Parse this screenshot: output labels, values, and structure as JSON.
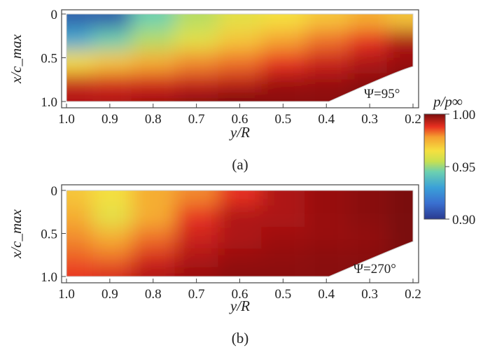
{
  "chart_data": [
    {
      "type": "heatmap",
      "panel_label": "(a)",
      "annotation": "Ψ=95°",
      "xlabel": "y/R",
      "ylabel": "x/c_max",
      "xlim": [
        1.0,
        0.2
      ],
      "ylim": [
        0,
        1.0
      ],
      "y_reversed": true,
      "xticks": [
        "1.0",
        "0.9",
        "0.8",
        "0.7",
        "0.6",
        "0.5",
        "0.4",
        "0.3",
        "0.2"
      ],
      "yticks": [
        "0",
        "0.5",
        "1.0"
      ],
      "field_description": "low pressure near leading edge at outboard y/R≈0.95, rising to high pressure near trailing edge",
      "sample_grid": {
        "y_over_R": [
          0.98,
          0.9,
          0.8,
          0.7,
          0.6,
          0.5,
          0.4,
          0.3,
          0.22
        ],
        "x_over_cmax": [
          0.05,
          0.3,
          0.55,
          0.8,
          0.97
        ],
        "p_over_pinf": [
          [
            0.905,
            0.905,
            0.925,
            0.935,
            0.945,
            0.95,
            0.955,
            0.96,
            0.955
          ],
          [
            0.915,
            0.925,
            0.935,
            0.945,
            0.955,
            0.962,
            0.968,
            0.975,
            0.985
          ],
          [
            0.95,
            0.955,
            0.96,
            0.965,
            0.968,
            0.975,
            0.98,
            0.985,
            0.99
          ],
          [
            0.98,
            0.978,
            0.978,
            0.98,
            0.982,
            0.988,
            0.99,
            0.995,
            0.998
          ],
          [
            0.985,
            0.985,
            0.988,
            0.995,
            1.0,
            0.995,
            0.995,
            0.998,
            1.0
          ]
        ]
      }
    },
    {
      "type": "heatmap",
      "panel_label": "(b)",
      "annotation": "Ψ=270°",
      "xlabel": "y/R",
      "ylabel": "x/c_max",
      "xlim": [
        1.0,
        0.2
      ],
      "ylim": [
        0,
        1.0
      ],
      "y_reversed": true,
      "xticks": [
        "1.0",
        "0.9",
        "0.8",
        "0.7",
        "0.6",
        "0.5",
        "0.4",
        "0.3",
        "0.2"
      ],
      "yticks": [
        "0",
        "0.5",
        "1.0"
      ],
      "field_description": "moderate pressure near outboard leading edge, high pressure over most of the blade inboard",
      "sample_grid": {
        "y_over_R": [
          0.98,
          0.9,
          0.8,
          0.7,
          0.6,
          0.5,
          0.4,
          0.3,
          0.22
        ],
        "x_over_cmax": [
          0.05,
          0.3,
          0.55,
          0.8,
          0.97
        ],
        "p_over_pinf": [
          [
            0.955,
            0.95,
            0.96,
            0.965,
            0.975,
            0.985,
            0.99,
            0.995,
            1.0
          ],
          [
            0.96,
            0.945,
            0.96,
            0.975,
            0.985,
            0.985,
            0.99,
            0.995,
            1.0
          ],
          [
            0.965,
            0.96,
            0.968,
            0.98,
            0.985,
            0.988,
            0.99,
            0.992,
            1.0
          ],
          [
            0.97,
            0.968,
            0.978,
            0.985,
            0.99,
            0.992,
            0.995,
            0.995,
            1.0
          ],
          [
            0.975,
            0.978,
            0.985,
            0.99,
            0.995,
            0.995,
            0.995,
            0.998,
            1.0
          ]
        ]
      }
    }
  ],
  "colorbar": {
    "label": "p/p∞",
    "range": [
      0.9,
      1.0
    ],
    "ticks": [
      "1.00",
      "0.95",
      "0.90"
    ],
    "colors": [
      "#2a3a8f",
      "#3aa0d8",
      "#6cd0b0",
      "#c8e050",
      "#f5e040",
      "#f5a030",
      "#e83020",
      "#a01010",
      "#7a0d0d"
    ]
  }
}
